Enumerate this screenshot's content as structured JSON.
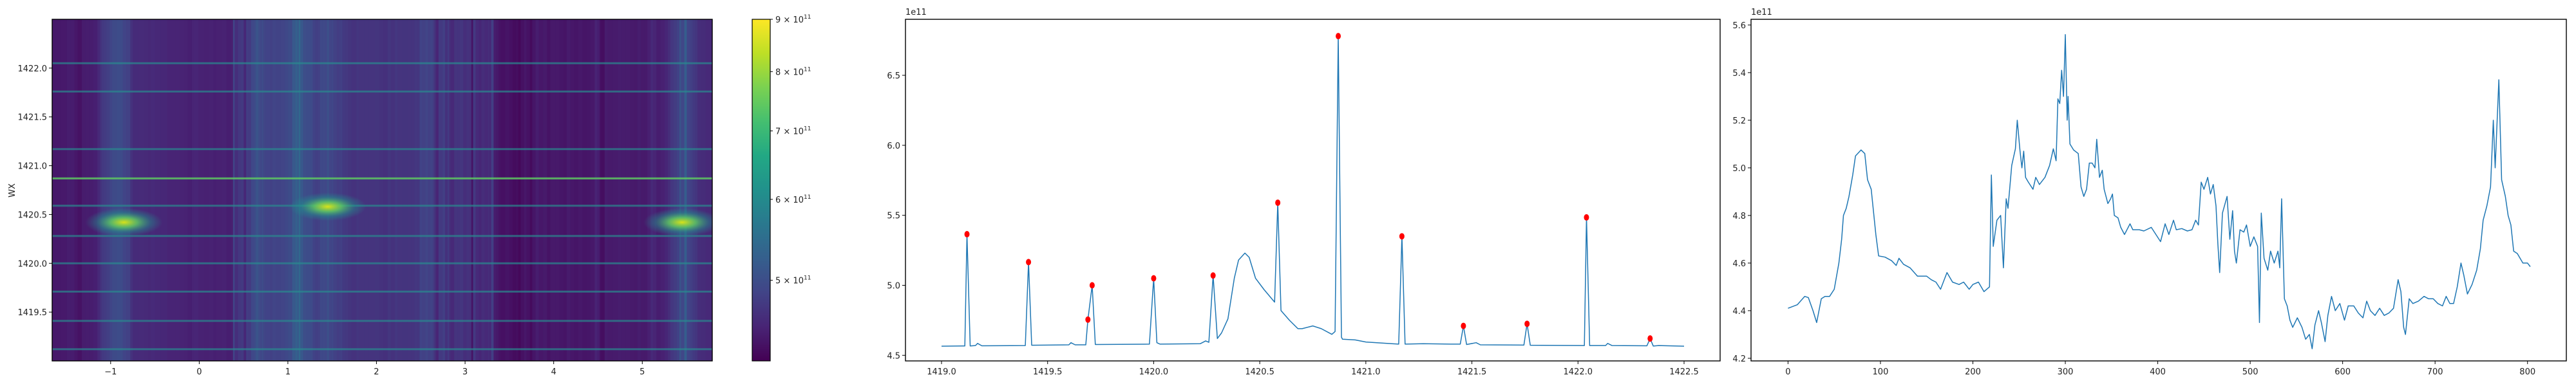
{
  "chart_data": [
    {
      "type": "heatmap",
      "ylabel": "WX",
      "xlim": [
        -1.66,
        5.79
      ],
      "ylim": [
        1419.0,
        1422.5
      ],
      "xticks": [
        "−1",
        "0",
        "1",
        "2",
        "3",
        "4",
        "5"
      ],
      "xtick_values": [
        -1,
        0,
        1,
        2,
        3,
        4,
        5
      ],
      "yticks": [
        "1419.5",
        "1420.0",
        "1420.5",
        "1421.0",
        "1421.5",
        "1422.0"
      ],
      "ytick_values": [
        1419.5,
        1420.0,
        1420.5,
        1421.0,
        1421.5,
        1422.0
      ],
      "colormap": "viridis",
      "colorbar": {
        "scale": "log",
        "range": [
          417000000000.0,
          900000000000.0
        ],
        "ticks": [
          {
            "value": 900000000000.0,
            "mantissa": "9 × 10",
            "exp": "11"
          },
          {
            "value": 800000000000.0,
            "mantissa": "8 × 10",
            "exp": "11"
          },
          {
            "value": 700000000000.0,
            "mantissa": "7 × 10",
            "exp": "11"
          },
          {
            "value": 600000000000.0,
            "mantissa": "6 × 10",
            "exp": "11"
          },
          {
            "value": 500000000000.0,
            "mantissa": "5 × 10",
            "exp": "11"
          }
        ]
      },
      "bright_rows": [
        1419.12,
        1419.41,
        1419.71,
        1420.0,
        1420.28,
        1420.59,
        1420.87,
        1421.17,
        1421.76,
        1422.05
      ],
      "hotspots": [
        {
          "x": -0.85,
          "y": 1420.42,
          "value": 860000000000.0
        },
        {
          "x": 1.45,
          "y": 1420.58,
          "value": 820000000000.0
        },
        {
          "x": 5.45,
          "y": 1420.42,
          "value": 800000000000.0
        }
      ]
    },
    {
      "type": "line",
      "offset_text": "1e11",
      "xlim": [
        1418.83,
        1422.67
      ],
      "ylim": [
        4.46,
        6.9
      ],
      "xticks": [
        "1419.0",
        "1419.5",
        "1420.0",
        "1420.5",
        "1421.0",
        "1421.5",
        "1422.0",
        "1422.5"
      ],
      "xtick_values": [
        1419.0,
        1419.5,
        1420.0,
        1420.5,
        1421.0,
        1421.5,
        1422.0,
        1422.5
      ],
      "yticks": [
        "4.5",
        "5.0",
        "5.5",
        "6.0",
        "6.5"
      ],
      "ytick_values": [
        4.5,
        5.0,
        5.5,
        6.0,
        6.5
      ],
      "line_color": "#1f77b4",
      "marker_color": "#ff0000",
      "points": [
        [
          1419.0,
          4.565
        ],
        [
          1419.1,
          4.567
        ],
        [
          1419.11,
          4.567
        ],
        [
          1419.12,
          5.365
        ],
        [
          1419.135,
          4.567
        ],
        [
          1419.16,
          4.57
        ],
        [
          1419.17,
          4.585
        ],
        [
          1419.19,
          4.568
        ],
        [
          1419.395,
          4.57
        ],
        [
          1419.41,
          5.166
        ],
        [
          1419.425,
          4.572
        ],
        [
          1419.6,
          4.575
        ],
        [
          1419.61,
          4.59
        ],
        [
          1419.63,
          4.575
        ],
        [
          1419.68,
          4.575
        ],
        [
          1419.69,
          4.755
        ],
        [
          1419.71,
          5.0
        ],
        [
          1419.725,
          4.577
        ],
        [
          1419.98,
          4.58
        ],
        [
          1420.0,
          5.05
        ],
        [
          1420.015,
          4.59
        ],
        [
          1420.03,
          4.58
        ],
        [
          1420.22,
          4.583
        ],
        [
          1420.245,
          4.603
        ],
        [
          1420.26,
          4.593
        ],
        [
          1420.28,
          5.07
        ],
        [
          1420.3,
          4.62
        ],
        [
          1420.32,
          4.66
        ],
        [
          1420.35,
          4.76
        ],
        [
          1420.38,
          5.05
        ],
        [
          1420.4,
          5.18
        ],
        [
          1420.43,
          5.23
        ],
        [
          1420.45,
          5.2
        ],
        [
          1420.48,
          5.05
        ],
        [
          1420.52,
          4.97
        ],
        [
          1420.57,
          4.88
        ],
        [
          1420.585,
          5.59
        ],
        [
          1420.6,
          4.82
        ],
        [
          1420.64,
          4.75
        ],
        [
          1420.68,
          4.69
        ],
        [
          1420.7,
          4.69
        ],
        [
          1420.75,
          4.71
        ],
        [
          1420.79,
          4.69
        ],
        [
          1420.84,
          4.65
        ],
        [
          1420.855,
          4.67
        ],
        [
          1420.87,
          6.78
        ],
        [
          1420.885,
          4.63
        ],
        [
          1420.89,
          4.615
        ],
        [
          1420.95,
          4.61
        ],
        [
          1421.0,
          4.595
        ],
        [
          1421.1,
          4.585
        ],
        [
          1421.155,
          4.58
        ],
        [
          1421.17,
          5.35
        ],
        [
          1421.185,
          4.58
        ],
        [
          1421.27,
          4.583
        ],
        [
          1421.4,
          4.58
        ],
        [
          1421.445,
          4.58
        ],
        [
          1421.46,
          4.71
        ],
        [
          1421.475,
          4.577
        ],
        [
          1421.52,
          4.59
        ],
        [
          1421.54,
          4.575
        ],
        [
          1421.68,
          4.574
        ],
        [
          1421.745,
          4.573
        ],
        [
          1421.76,
          4.725
        ],
        [
          1421.775,
          4.572
        ],
        [
          1422.03,
          4.57
        ],
        [
          1422.04,
          5.485
        ],
        [
          1422.055,
          4.57
        ],
        [
          1422.13,
          4.57
        ],
        [
          1422.14,
          4.585
        ],
        [
          1422.16,
          4.57
        ],
        [
          1422.325,
          4.568
        ],
        [
          1422.34,
          4.62
        ],
        [
          1422.355,
          4.566
        ],
        [
          1422.38,
          4.57
        ],
        [
          1422.5,
          4.565
        ]
      ],
      "peaks": [
        [
          1419.12,
          5.365
        ],
        [
          1419.41,
          5.166
        ],
        [
          1419.69,
          4.755
        ],
        [
          1419.71,
          5.0
        ],
        [
          1420.0,
          5.05
        ],
        [
          1420.28,
          5.07
        ],
        [
          1420.585,
          5.59
        ],
        [
          1420.87,
          6.78
        ],
        [
          1421.17,
          5.35
        ],
        [
          1421.46,
          4.71
        ],
        [
          1421.76,
          4.725
        ],
        [
          1422.04,
          5.485
        ],
        [
          1422.34,
          4.62
        ]
      ]
    },
    {
      "type": "line",
      "offset_text": "1e11",
      "xlim": [
        -40,
        842
      ],
      "ylim": [
        4.189,
        5.624
      ],
      "xticks": [
        "0",
        "100",
        "200",
        "300",
        "400",
        "500",
        "600",
        "700",
        "800"
      ],
      "xtick_values": [
        0,
        100,
        200,
        300,
        400,
        500,
        600,
        700,
        800
      ],
      "yticks": [
        "4.2",
        "4.4",
        "4.6",
        "4.8",
        "5.0",
        "5.2",
        "5.4",
        "5.6"
      ],
      "ytick_values": [
        4.2,
        4.4,
        4.6,
        4.8,
        5.0,
        5.2,
        5.4,
        5.6
      ],
      "line_color": "#1f77b4",
      "points": [
        [
          0,
          4.41
        ],
        [
          10,
          4.425
        ],
        [
          18,
          4.46
        ],
        [
          22,
          4.455
        ],
        [
          27,
          4.4
        ],
        [
          31,
          4.35
        ],
        [
          36,
          4.45
        ],
        [
          40,
          4.46
        ],
        [
          45,
          4.46
        ],
        [
          50,
          4.49
        ],
        [
          55,
          4.6
        ],
        [
          58,
          4.7
        ],
        [
          60,
          4.8
        ],
        [
          63,
          4.83
        ],
        [
          66,
          4.88
        ],
        [
          70,
          4.97
        ],
        [
          73,
          5.05
        ],
        [
          79,
          5.075
        ],
        [
          83,
          5.06
        ],
        [
          86,
          4.95
        ],
        [
          90,
          4.91
        ],
        [
          95,
          4.72
        ],
        [
          98,
          4.63
        ],
        [
          105,
          4.625
        ],
        [
          112,
          4.61
        ],
        [
          117,
          4.59
        ],
        [
          120,
          4.62
        ],
        [
          125,
          4.595
        ],
        [
          132,
          4.58
        ],
        [
          140,
          4.545
        ],
        [
          150,
          4.545
        ],
        [
          155,
          4.53
        ],
        [
          160,
          4.52
        ],
        [
          165,
          4.49
        ],
        [
          170,
          4.54
        ],
        [
          172,
          4.56
        ],
        [
          178,
          4.52
        ],
        [
          185,
          4.51
        ],
        [
          190,
          4.52
        ],
        [
          196,
          4.49
        ],
        [
          200,
          4.51
        ],
        [
          206,
          4.52
        ],
        [
          212,
          4.48
        ],
        [
          218,
          4.5
        ],
        [
          220,
          4.97
        ],
        [
          222,
          4.67
        ],
        [
          226,
          4.78
        ],
        [
          230,
          4.8
        ],
        [
          233,
          4.58
        ],
        [
          236,
          4.87
        ],
        [
          238,
          4.83
        ],
        [
          242,
          5.01
        ],
        [
          246,
          5.08
        ],
        [
          248,
          5.2
        ],
        [
          251,
          5.07
        ],
        [
          253,
          5.0
        ],
        [
          255,
          5.07
        ],
        [
          257,
          4.96
        ],
        [
          260,
          4.94
        ],
        [
          265,
          4.91
        ],
        [
          268,
          4.96
        ],
        [
          272,
          4.93
        ],
        [
          278,
          4.96
        ],
        [
          283,
          5.01
        ],
        [
          287,
          5.08
        ],
        [
          290,
          5.03
        ],
        [
          292,
          5.29
        ],
        [
          294,
          5.27
        ],
        [
          296,
          5.41
        ],
        [
          298,
          5.3
        ],
        [
          300,
          5.56
        ],
        [
          302,
          5.2
        ],
        [
          303,
          5.3
        ],
        [
          305,
          5.1
        ],
        [
          309,
          5.075
        ],
        [
          314,
          5.06
        ],
        [
          317,
          4.92
        ],
        [
          320,
          4.88
        ],
        [
          323,
          4.91
        ],
        [
          326,
          5.02
        ],
        [
          329,
          5.02
        ],
        [
          332,
          5.0
        ],
        [
          334,
          5.12
        ],
        [
          337,
          4.96
        ],
        [
          340,
          4.99
        ],
        [
          342,
          4.91
        ],
        [
          346,
          4.85
        ],
        [
          349,
          4.87
        ],
        [
          351,
          4.89
        ],
        [
          353,
          4.8
        ],
        [
          357,
          4.79
        ],
        [
          360,
          4.75
        ],
        [
          364,
          4.72
        ],
        [
          370,
          4.765
        ],
        [
          373,
          4.74
        ],
        [
          380,
          4.74
        ],
        [
          385,
          4.735
        ],
        [
          393,
          4.75
        ],
        [
          398,
          4.72
        ],
        [
          403,
          4.69
        ],
        [
          408,
          4.765
        ],
        [
          412,
          4.72
        ],
        [
          417,
          4.78
        ],
        [
          420,
          4.74
        ],
        [
          426,
          4.745
        ],
        [
          432,
          4.735
        ],
        [
          437,
          4.74
        ],
        [
          441,
          4.78
        ],
        [
          444,
          4.76
        ],
        [
          447,
          4.94
        ],
        [
          450,
          4.91
        ],
        [
          454,
          4.96
        ],
        [
          457,
          4.89
        ],
        [
          460,
          4.93
        ],
        [
          463,
          4.84
        ],
        [
          465,
          4.68
        ],
        [
          467,
          4.56
        ],
        [
          470,
          4.81
        ],
        [
          475,
          4.88
        ],
        [
          478,
          4.7
        ],
        [
          481,
          4.82
        ],
        [
          483,
          4.65
        ],
        [
          485,
          4.6
        ],
        [
          489,
          4.74
        ],
        [
          493,
          4.73
        ],
        [
          496,
          4.76
        ],
        [
          500,
          4.67
        ],
        [
          504,
          4.71
        ],
        [
          508,
          4.67
        ],
        [
          510,
          4.35
        ],
        [
          512,
          4.81
        ],
        [
          515,
          4.62
        ],
        [
          519,
          4.57
        ],
        [
          522,
          4.65
        ],
        [
          526,
          4.6
        ],
        [
          530,
          4.65
        ],
        [
          532,
          4.58
        ],
        [
          534,
          4.87
        ],
        [
          537,
          4.45
        ],
        [
          540,
          4.42
        ],
        [
          543,
          4.36
        ],
        [
          546,
          4.33
        ],
        [
          551,
          4.37
        ],
        [
          556,
          4.33
        ],
        [
          560,
          4.28
        ],
        [
          564,
          4.3
        ],
        [
          567,
          4.24
        ],
        [
          570,
          4.34
        ],
        [
          574,
          4.4
        ],
        [
          577,
          4.35
        ],
        [
          581,
          4.27
        ],
        [
          584,
          4.38
        ],
        [
          588,
          4.46
        ],
        [
          592,
          4.4
        ],
        [
          597,
          4.43
        ],
        [
          602,
          4.36
        ],
        [
          606,
          4.42
        ],
        [
          612,
          4.42
        ],
        [
          617,
          4.39
        ],
        [
          622,
          4.37
        ],
        [
          626,
          4.44
        ],
        [
          630,
          4.4
        ],
        [
          635,
          4.38
        ],
        [
          640,
          4.41
        ],
        [
          645,
          4.38
        ],
        [
          650,
          4.39
        ],
        [
          655,
          4.41
        ],
        [
          660,
          4.53
        ],
        [
          663,
          4.48
        ],
        [
          666,
          4.33
        ],
        [
          668,
          4.3
        ],
        [
          672,
          4.45
        ],
        [
          676,
          4.43
        ],
        [
          682,
          4.44
        ],
        [
          688,
          4.46
        ],
        [
          693,
          4.45
        ],
        [
          698,
          4.45
        ],
        [
          703,
          4.43
        ],
        [
          708,
          4.42
        ],
        [
          712,
          4.46
        ],
        [
          716,
          4.43
        ],
        [
          720,
          4.43
        ],
        [
          724,
          4.5
        ],
        [
          728,
          4.6
        ],
        [
          731,
          4.55
        ],
        [
          735,
          4.47
        ],
        [
          740,
          4.51
        ],
        [
          745,
          4.57
        ],
        [
          749,
          4.66
        ],
        [
          752,
          4.78
        ],
        [
          756,
          4.84
        ],
        [
          760,
          4.92
        ],
        [
          763,
          5.2
        ],
        [
          765,
          5.0
        ],
        [
          769,
          5.37
        ],
        [
          772,
          4.95
        ],
        [
          776,
          4.88
        ],
        [
          779,
          4.8
        ],
        [
          782,
          4.76
        ],
        [
          785,
          4.65
        ],
        [
          789,
          4.64
        ],
        [
          795,
          4.6
        ],
        [
          800,
          4.6
        ],
        [
          803,
          4.585
        ]
      ]
    }
  ]
}
